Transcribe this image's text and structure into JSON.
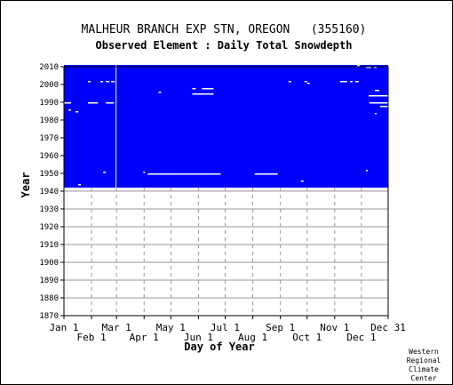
{
  "chart_data": {
    "type": "heatmap",
    "title": "MALHEUR BRANCH EXP STN, OREGON   (355160)",
    "subtitle": "Observed Element : Daily Total Snowdepth",
    "xlabel": "Day of Year",
    "ylabel": "Year",
    "credit": [
      "Western",
      "Regional",
      "Climate",
      "Center"
    ],
    "x_range": [
      1,
      365
    ],
    "y_range": [
      1870,
      2010
    ],
    "y_ticks": [
      1870,
      1880,
      1890,
      1900,
      1910,
      1920,
      1930,
      1940,
      1950,
      1960,
      1970,
      1980,
      1990,
      2000,
      2010
    ],
    "x_ticks": [
      {
        "label": "Jan 1",
        "day": 1,
        "row": 1
      },
      {
        "label": "Feb 1",
        "day": 32,
        "row": 2
      },
      {
        "label": "Mar 1",
        "day": 60,
        "row": 1
      },
      {
        "label": "Apr 1",
        "day": 91,
        "row": 2
      },
      {
        "label": "May 1",
        "day": 121,
        "row": 1
      },
      {
        "label": "Jun 1",
        "day": 152,
        "row": 2
      },
      {
        "label": "Jul 1",
        "day": 182,
        "row": 1
      },
      {
        "label": "Aug 1",
        "day": 213,
        "row": 2
      },
      {
        "label": "Sep 1",
        "day": 244,
        "row": 1
      },
      {
        "label": "Oct 1",
        "day": 274,
        "row": 2
      },
      {
        "label": "Nov 1",
        "day": 305,
        "row": 1
      },
      {
        "label": "Dec 1",
        "day": 335,
        "row": 2
      },
      {
        "label": "Dec 31",
        "day": 365,
        "row": 1
      }
    ],
    "grid": true,
    "data_color": "#0000ff",
    "observed_years": [
      1942,
      2010
    ],
    "missing_segments": [
      {
        "year": 1943,
        "start": 17,
        "end": 19
      },
      {
        "year": 1945,
        "start": 267,
        "end": 269
      },
      {
        "year": 1950,
        "start": 45,
        "end": 47
      },
      {
        "year": 1950,
        "start": 90,
        "end": 91
      },
      {
        "year": 1949,
        "start": 95,
        "end": 176
      },
      {
        "year": 1949,
        "start": 215,
        "end": 240
      },
      {
        "year": 1951,
        "start": 340,
        "end": 341
      },
      {
        "year": 1984,
        "start": 14,
        "end": 16
      },
      {
        "year": 1985,
        "start": 6,
        "end": 8
      },
      {
        "year": 1983,
        "start": 350,
        "end": 351
      },
      {
        "year": 1989,
        "start": 1,
        "end": 8
      },
      {
        "year": 1989,
        "start": 28,
        "end": 38
      },
      {
        "year": 1989,
        "start": 48,
        "end": 56
      },
      {
        "year": 1989,
        "start": 344,
        "end": 365
      },
      {
        "year": 1987,
        "start": 356,
        "end": 365
      },
      {
        "year": 1993,
        "start": 343,
        "end": 365
      },
      {
        "year": 1994,
        "start": 145,
        "end": 168
      },
      {
        "year": 1995,
        "start": 107,
        "end": 109
      },
      {
        "year": 1996,
        "start": 350,
        "end": 354
      },
      {
        "year": 1997,
        "start": 145,
        "end": 148
      },
      {
        "year": 1997,
        "start": 156,
        "end": 168
      },
      {
        "year": 2001,
        "start": 28,
        "end": 30
      },
      {
        "year": 2001,
        "start": 42,
        "end": 44
      },
      {
        "year": 2001,
        "start": 48,
        "end": 51
      },
      {
        "year": 2001,
        "start": 54,
        "end": 57
      },
      {
        "year": 2001,
        "start": 253,
        "end": 255
      },
      {
        "year": 2001,
        "start": 271,
        "end": 273
      },
      {
        "year": 2001,
        "start": 311,
        "end": 318
      },
      {
        "year": 2001,
        "start": 322,
        "end": 324
      },
      {
        "year": 2001,
        "start": 328,
        "end": 331
      },
      {
        "year": 2000,
        "start": 274,
        "end": 276
      },
      {
        "year": 2009,
        "start": 340,
        "end": 345
      },
      {
        "year": 2009,
        "start": 349,
        "end": 351
      },
      {
        "year": 2010,
        "start": 330,
        "end": 332
      }
    ],
    "missing_columns": [
      {
        "day": 59,
        "start_year": 1942,
        "end_year": 2010
      }
    ]
  }
}
